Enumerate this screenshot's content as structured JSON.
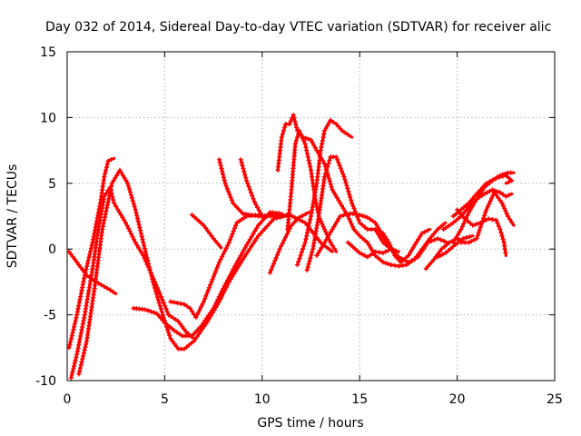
{
  "chart_data": {
    "type": "scatter",
    "title": "Day 032 of 2014, Sidereal Day-to-day VTEC variation (SDTVAR) for receiver alic",
    "xlabel": "GPS time / hours",
    "ylabel": "SDTVAR / TECUs",
    "xlim": [
      0,
      25
    ],
    "ylim": [
      -10,
      15
    ],
    "xticks": [
      0,
      5,
      10,
      15,
      20,
      25
    ],
    "yticks": [
      -10,
      -5,
      0,
      5,
      10,
      15
    ],
    "grid": true,
    "marker": "plus",
    "color": "#ff0000",
    "series": [
      {
        "points": [
          [
            0.1,
            -0.2
          ],
          [
            0.5,
            -1.0
          ],
          [
            1.0,
            -2.0
          ],
          [
            1.6,
            -2.6
          ],
          [
            2.2,
            -3.1
          ],
          [
            2.5,
            -3.4
          ]
        ]
      },
      {
        "points": [
          [
            0.1,
            -7.5
          ],
          [
            0.5,
            -5.0
          ],
          [
            0.9,
            -2.0
          ],
          [
            1.3,
            0.5
          ],
          [
            1.7,
            3.5
          ],
          [
            1.9,
            5.5
          ],
          [
            2.1,
            6.7
          ],
          [
            2.4,
            6.9
          ]
        ]
      },
      {
        "points": [
          [
            0.2,
            -9.8
          ],
          [
            0.5,
            -8.0
          ],
          [
            0.9,
            -5.0
          ],
          [
            1.3,
            -1.5
          ],
          [
            1.6,
            1.5
          ],
          [
            1.9,
            4.0
          ],
          [
            2.2,
            4.7
          ],
          [
            2.4,
            3.5
          ],
          [
            2.6,
            3.0
          ],
          [
            3.0,
            2.0
          ],
          [
            3.5,
            0.5
          ],
          [
            3.9,
            -0.5
          ],
          [
            4.5,
            -2.5
          ],
          [
            5.2,
            -5.0
          ],
          [
            5.7,
            -5.5
          ],
          [
            6.1,
            -6.3
          ],
          [
            6.5,
            -6.8
          ]
        ]
      },
      {
        "points": [
          [
            0.6,
            -9.5
          ],
          [
            1.0,
            -7.0
          ],
          [
            1.4,
            -3.0
          ],
          [
            1.8,
            1.5
          ],
          [
            2.3,
            5.0
          ],
          [
            2.7,
            6.0
          ],
          [
            3.1,
            5.0
          ],
          [
            3.5,
            3.0
          ],
          [
            3.9,
            0.5
          ],
          [
            4.4,
            -2.5
          ],
          [
            4.9,
            -5.0
          ],
          [
            5.3,
            -6.8
          ],
          [
            5.7,
            -7.6
          ],
          [
            6.0,
            -7.6
          ],
          [
            6.5,
            -7.0
          ],
          [
            7.2,
            -5.5
          ],
          [
            7.8,
            -4.0
          ],
          [
            8.3,
            -2.5
          ],
          [
            9.0,
            -0.8
          ],
          [
            9.8,
            1.0
          ],
          [
            10.6,
            2.3
          ],
          [
            11.4,
            2.6
          ],
          [
            12.2,
            2.0
          ],
          [
            13.0,
            0.5
          ],
          [
            13.6,
            -0.2
          ]
        ]
      },
      {
        "points": [
          [
            3.4,
            -4.5
          ],
          [
            4.0,
            -4.6
          ],
          [
            4.6,
            -4.9
          ],
          [
            5.0,
            -5.6
          ],
          [
            5.5,
            -6.2
          ],
          [
            5.9,
            -6.6
          ],
          [
            6.4,
            -6.6
          ],
          [
            6.9,
            -5.8
          ],
          [
            7.5,
            -4.5
          ],
          [
            8.0,
            -3.0
          ],
          [
            8.6,
            -1.3
          ],
          [
            9.2,
            0.3
          ],
          [
            9.8,
            1.8
          ],
          [
            10.4,
            2.8
          ],
          [
            11.0,
            2.7
          ]
        ]
      },
      {
        "points": [
          [
            5.3,
            -4.0
          ],
          [
            6.0,
            -4.2
          ],
          [
            6.3,
            -4.5
          ],
          [
            6.6,
            -5.2
          ],
          [
            7.0,
            -4.0
          ],
          [
            7.4,
            -2.5
          ],
          [
            7.8,
            -1.0
          ],
          [
            8.3,
            0.5
          ],
          [
            8.7,
            2.0
          ],
          [
            9.2,
            2.5
          ],
          [
            9.8,
            2.6
          ]
        ]
      },
      {
        "points": [
          [
            6.4,
            2.6
          ],
          [
            7.0,
            1.8
          ],
          [
            7.5,
            0.8
          ],
          [
            7.9,
            0.1
          ]
        ]
      },
      {
        "points": [
          [
            7.8,
            6.8
          ],
          [
            8.1,
            5.0
          ],
          [
            8.5,
            3.5
          ],
          [
            9.0,
            2.7
          ],
          [
            9.8,
            2.5
          ],
          [
            10.6,
            2.5
          ],
          [
            11.4,
            2.6
          ]
        ]
      },
      {
        "points": [
          [
            8.9,
            6.8
          ],
          [
            9.2,
            5.2
          ],
          [
            9.6,
            3.6
          ],
          [
            10.0,
            2.5
          ],
          [
            10.5,
            2.6
          ],
          [
            11.2,
            2.5
          ]
        ]
      },
      {
        "points": [
          [
            10.4,
            -1.8
          ],
          [
            10.9,
            0.0
          ],
          [
            11.5,
            1.8
          ],
          [
            11.9,
            2.4
          ],
          [
            12.4,
            2.8
          ]
        ]
      },
      {
        "points": [
          [
            10.8,
            6.0
          ],
          [
            11.0,
            8.5
          ],
          [
            11.2,
            9.5
          ],
          [
            11.4,
            9.5
          ],
          [
            11.6,
            10.2
          ],
          [
            11.8,
            9.0
          ],
          [
            12.1,
            8.5
          ],
          [
            12.5,
            8.3
          ],
          [
            12.8,
            7.5
          ],
          [
            13.2,
            6.5
          ],
          [
            13.6,
            4.5
          ],
          [
            14.0,
            3.5
          ],
          [
            14.4,
            2.5
          ],
          [
            14.7,
            1.5
          ],
          [
            15.0,
            1.0
          ]
        ]
      },
      {
        "points": [
          [
            11.3,
            1.5
          ],
          [
            11.5,
            4.5
          ],
          [
            11.7,
            8.0
          ],
          [
            11.9,
            9.0
          ],
          [
            12.2,
            8.0
          ],
          [
            12.5,
            6.0
          ],
          [
            12.7,
            4.0
          ],
          [
            12.9,
            2.5
          ],
          [
            13.2,
            1.5
          ],
          [
            13.5,
            0.5
          ],
          [
            13.8,
            -0.2
          ]
        ]
      },
      {
        "points": [
          [
            11.8,
            -1.2
          ],
          [
            12.2,
            0.5
          ],
          [
            12.5,
            2.5
          ],
          [
            12.8,
            5.0
          ],
          [
            13.0,
            7.5
          ],
          [
            13.2,
            9.0
          ],
          [
            13.5,
            9.8
          ],
          [
            13.8,
            9.5
          ],
          [
            14.1,
            9.0
          ],
          [
            14.4,
            8.7
          ],
          [
            14.6,
            8.5
          ]
        ]
      },
      {
        "points": [
          [
            12.3,
            -1.6
          ],
          [
            12.6,
            0.0
          ],
          [
            12.9,
            2.5
          ],
          [
            13.2,
            5.5
          ],
          [
            13.5,
            7.0
          ],
          [
            13.8,
            7.0
          ],
          [
            14.2,
            5.5
          ],
          [
            14.6,
            3.5
          ],
          [
            15.0,
            2.0
          ],
          [
            15.4,
            1.5
          ],
          [
            15.8,
            1.5
          ],
          [
            16.2,
            0.5
          ],
          [
            16.6,
            0.0
          ],
          [
            17.0,
            -0.2
          ]
        ]
      },
      {
        "points": [
          [
            12.8,
            -0.5
          ],
          [
            13.2,
            0.5
          ],
          [
            13.6,
            1.5
          ],
          [
            14.0,
            2.5
          ],
          [
            14.5,
            2.7
          ],
          [
            15.0,
            2.6
          ],
          [
            15.4,
            2.4
          ],
          [
            15.8,
            2.0
          ],
          [
            16.2,
            1.0
          ],
          [
            16.6,
            0.0
          ],
          [
            17.0,
            -0.6
          ],
          [
            17.5,
            -1.0
          ],
          [
            18.0,
            -0.6
          ],
          [
            18.5,
            0.5
          ],
          [
            19.0,
            0.8
          ],
          [
            19.5,
            0.5
          ]
        ]
      },
      {
        "points": [
          [
            14.4,
            0.5
          ],
          [
            15.0,
            -0.3
          ],
          [
            15.4,
            -0.6
          ],
          [
            15.8,
            -0.2
          ],
          [
            16.2,
            -0.3
          ],
          [
            16.6,
            0.0
          ],
          [
            16.9,
            -0.2
          ]
        ]
      },
      {
        "points": [
          [
            15.0,
            1.0
          ],
          [
            15.4,
            0.5
          ],
          [
            15.8,
            -0.5
          ],
          [
            16.2,
            -1.0
          ],
          [
            16.6,
            -1.2
          ],
          [
            17.0,
            -1.3
          ],
          [
            17.4,
            -1.2
          ],
          [
            17.8,
            -0.8
          ],
          [
            18.2,
            0.0
          ],
          [
            18.6,
            0.8
          ],
          [
            19.0,
            1.5
          ],
          [
            19.4,
            2.0
          ]
        ]
      },
      {
        "points": [
          [
            16.2,
            1.2
          ],
          [
            16.5,
            0.5
          ],
          [
            16.8,
            -0.5
          ],
          [
            17.1,
            -1.0
          ],
          [
            17.5,
            -0.5
          ],
          [
            17.9,
            0.5
          ],
          [
            18.2,
            1.2
          ],
          [
            18.6,
            1.5
          ]
        ]
      },
      {
        "points": [
          [
            18.4,
            -1.5
          ],
          [
            18.8,
            -0.8
          ],
          [
            19.2,
            0.0
          ],
          [
            19.6,
            0.5
          ],
          [
            20.0,
            0.8
          ],
          [
            20.4,
            0.5
          ]
        ]
      },
      {
        "points": [
          [
            19.3,
            1.5
          ],
          [
            19.8,
            2.0
          ],
          [
            20.2,
            2.5
          ],
          [
            20.6,
            3.2
          ],
          [
            21.0,
            3.8
          ],
          [
            21.4,
            4.2
          ],
          [
            21.8,
            4.5
          ],
          [
            22.2,
            4.3
          ],
          [
            22.5,
            4.0
          ],
          [
            22.8,
            4.2
          ]
        ]
      },
      {
        "points": [
          [
            19.8,
            0.5
          ],
          [
            20.2,
            1.5
          ],
          [
            20.6,
            2.8
          ],
          [
            21.0,
            3.8
          ],
          [
            21.4,
            4.7
          ],
          [
            21.8,
            5.2
          ],
          [
            22.2,
            5.6
          ],
          [
            22.6,
            5.8
          ],
          [
            22.9,
            5.8
          ]
        ]
      },
      {
        "points": [
          [
            19.8,
            2.5
          ],
          [
            20.2,
            3.0
          ],
          [
            20.6,
            3.5
          ],
          [
            21.0,
            4.2
          ],
          [
            21.5,
            5.0
          ],
          [
            22.0,
            5.4
          ],
          [
            22.5,
            5.6
          ],
          [
            22.8,
            5.2
          ],
          [
            22.5,
            5.0
          ]
        ]
      },
      {
        "points": [
          [
            20.0,
            3.0
          ],
          [
            20.4,
            2.3
          ],
          [
            20.8,
            1.8
          ],
          [
            21.2,
            2.0
          ],
          [
            21.6,
            2.3
          ],
          [
            22.0,
            2.2
          ],
          [
            22.2,
            1.5
          ],
          [
            22.4,
            0.5
          ],
          [
            22.5,
            -0.5
          ]
        ]
      },
      {
        "points": [
          [
            20.2,
            0.5
          ],
          [
            20.6,
            0.5
          ],
          [
            21.0,
            0.8
          ],
          [
            21.5,
            3.0
          ],
          [
            21.9,
            4.3
          ],
          [
            22.3,
            3.5
          ],
          [
            22.6,
            2.5
          ],
          [
            22.9,
            1.8
          ]
        ]
      },
      {
        "points": [
          [
            19.0,
            -0.6
          ],
          [
            19.4,
            -0.3
          ],
          [
            19.8,
            0.2
          ],
          [
            20.3,
            0.8
          ],
          [
            20.8,
            1.0
          ]
        ]
      }
    ]
  }
}
